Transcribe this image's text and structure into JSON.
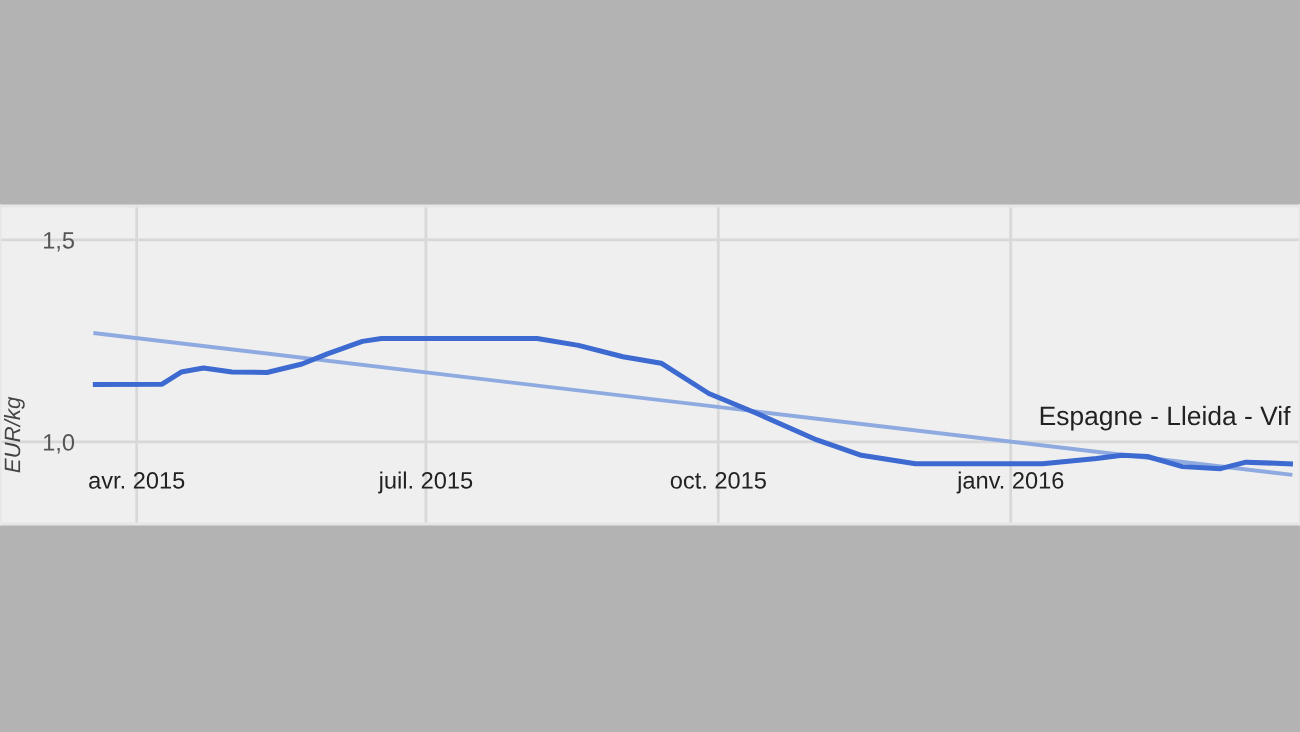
{
  "chart_data": {
    "type": "line",
    "ylabel": "EUR/kg",
    "xlim": [
      "2015-02-17",
      "2016-04-01"
    ],
    "xticks": [
      {
        "value": "2015-04-01",
        "label": "avr. 2015"
      },
      {
        "value": "2015-07-01",
        "label": "juil. 2015"
      },
      {
        "value": "2015-10-01",
        "label": "oct. 2015"
      },
      {
        "value": "2016-01-01",
        "label": "janv. 2016"
      }
    ],
    "ylim": [
      0.797,
      1.584
    ],
    "yticks": [
      {
        "value": 1.5,
        "label": "1,5"
      },
      {
        "value": 1.0,
        "label": "1,0"
      }
    ],
    "grid": true,
    "marker": "none",
    "line_style": "solid",
    "series": [
      {
        "name": "Espagne - Lleida - Vif",
        "color": "#3d6ad0",
        "x": [
          "2015-03-19",
          "2015-04-09",
          "2015-04-15",
          "2015-04-22",
          "2015-05-01",
          "2015-05-12",
          "2015-05-23",
          "2015-05-31",
          "2015-06-11",
          "2015-06-17",
          "2015-06-30",
          "2015-08-05",
          "2015-08-18",
          "2015-09-01",
          "2015-09-13",
          "2015-09-28",
          "2015-10-13",
          "2015-11-01",
          "2015-11-15",
          "2015-12-02",
          "2016-01-11",
          "2016-01-28",
          "2016-02-05",
          "2016-02-13",
          "2016-02-24",
          "2016-03-07",
          "2016-03-15",
          "2016-03-29"
        ],
        "values": [
          1.142,
          1.143,
          1.173,
          1.183,
          1.173,
          1.172,
          1.193,
          1.218,
          1.249,
          1.256,
          1.256,
          1.256,
          1.239,
          1.211,
          1.195,
          1.12,
          1.071,
          1.005,
          0.967,
          0.946,
          0.946,
          0.959,
          0.967,
          0.964,
          0.939,
          0.934,
          0.95,
          0.946
        ]
      },
      {
        "type": "line",
        "color": "#8eaae0",
        "x": [
          "2015-03-19",
          "2016-03-29"
        ],
        "values": [
          1.269,
          0.919
        ]
      }
    ]
  }
}
